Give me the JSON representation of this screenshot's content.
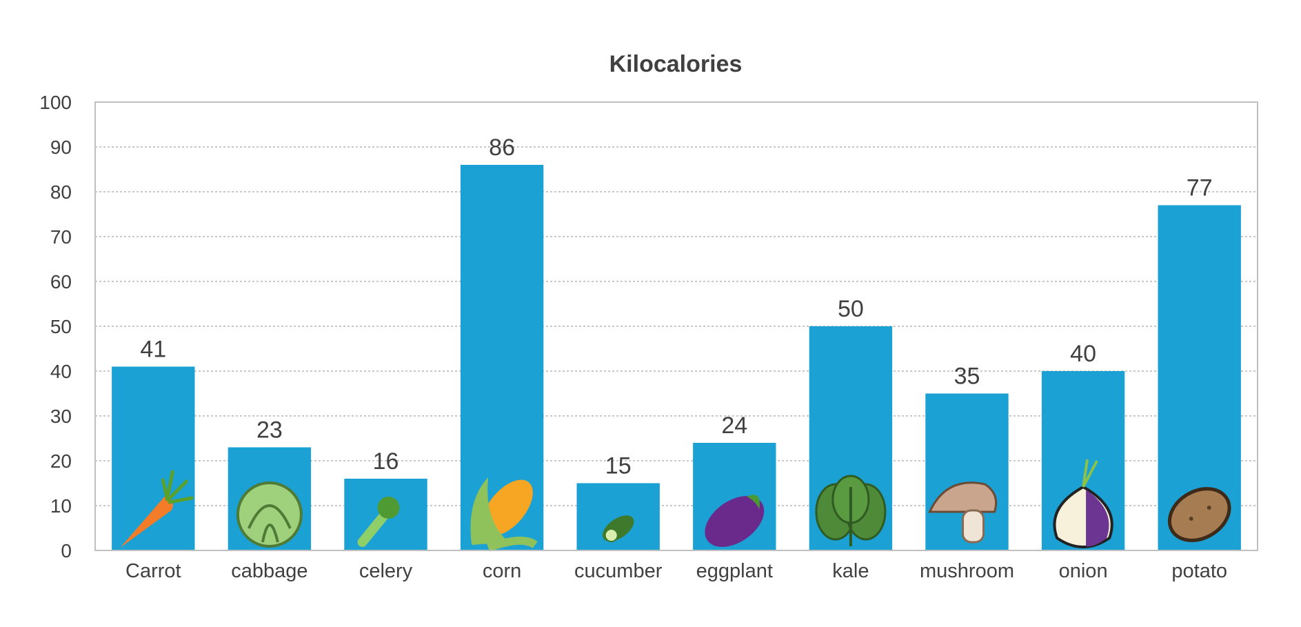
{
  "chart_data": {
    "type": "bar",
    "title": "Kilocalories",
    "xlabel": "",
    "ylabel": "",
    "categories": [
      "Carrot",
      "cabbage",
      "celery",
      "corn",
      "cucumber",
      "eggplant",
      "kale",
      "mushroom",
      "onion",
      "potato"
    ],
    "values": [
      41,
      23,
      16,
      86,
      15,
      24,
      50,
      35,
      40,
      77
    ],
    "ylim": [
      0,
      100
    ],
    "yticks": [
      0,
      10,
      20,
      30,
      40,
      50,
      60,
      70,
      80,
      90,
      100
    ],
    "grid": true,
    "legend": "none",
    "bar_color": "#1ba1d4",
    "icons": [
      "carrot-icon",
      "cabbage-icon",
      "celery-icon",
      "corn-icon",
      "cucumber-icon",
      "eggplant-icon",
      "kale-icon",
      "mushroom-icon",
      "onion-icon",
      "potato-icon"
    ]
  }
}
